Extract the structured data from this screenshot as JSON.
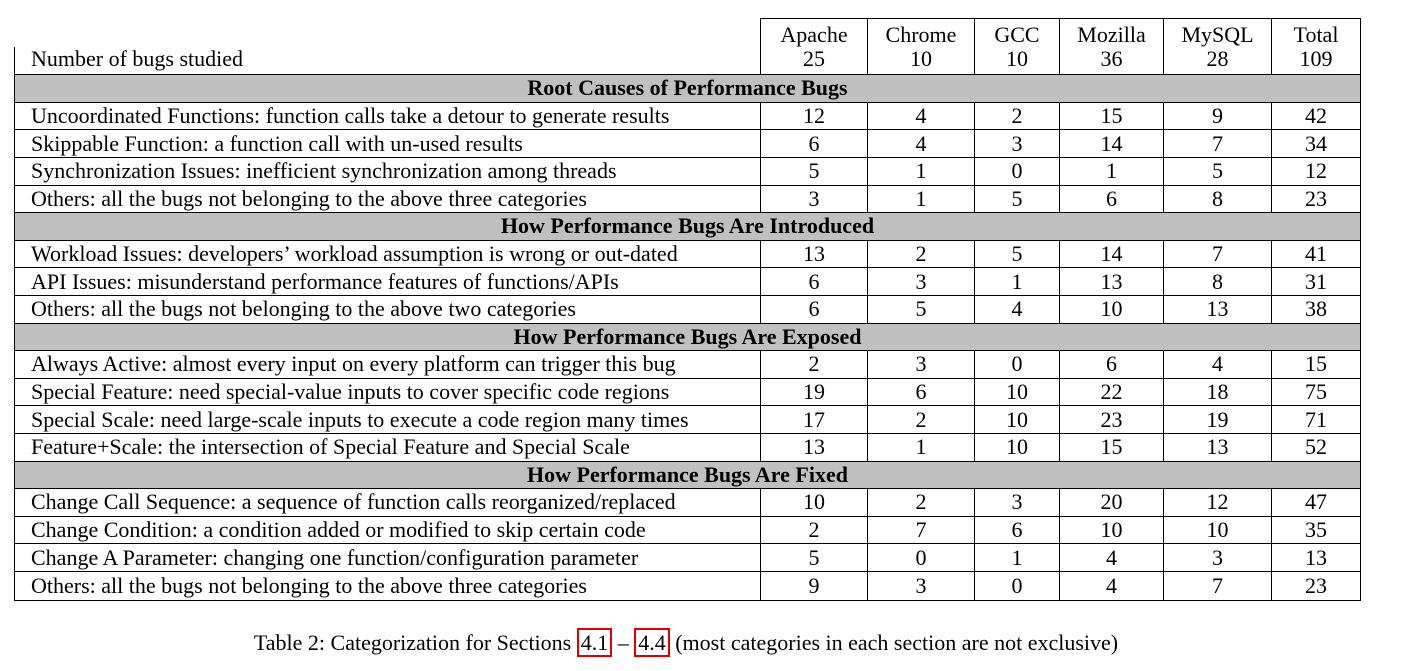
{
  "table": {
    "columns": [
      "Apache",
      "Chrome",
      "GCC",
      "Mozilla",
      "MySQL",
      "Total"
    ],
    "count_row": {
      "label": "Number of bugs studied",
      "values": [
        "25",
        "10",
        "10",
        "36",
        "28",
        "109"
      ]
    },
    "sections": [
      {
        "title": "Root Causes of Performance Bugs",
        "rows": [
          {
            "label": "Uncoordinated Functions: function calls take a detour to generate results",
            "values": [
              "12",
              "4",
              "2",
              "15",
              "9",
              "42"
            ]
          },
          {
            "label": "Skippable Function: a function call with un-used results",
            "values": [
              "6",
              "4",
              "3",
              "14",
              "7",
              "34"
            ]
          },
          {
            "label": "Synchronization Issues: inefficient synchronization among threads",
            "values": [
              "5",
              "1",
              "0",
              "1",
              "5",
              "12"
            ]
          },
          {
            "label": "Others: all the bugs not belonging to the above three categories",
            "values": [
              "3",
              "1",
              "5",
              "6",
              "8",
              "23"
            ]
          }
        ]
      },
      {
        "title": "How Performance Bugs Are Introduced",
        "rows": [
          {
            "label": "Workload Issues: developers’ workload assumption is wrong or out-dated",
            "values": [
              "13",
              "2",
              "5",
              "14",
              "7",
              "41"
            ]
          },
          {
            "label": "API Issues: misunderstand performance features of functions/APIs",
            "values": [
              "6",
              "3",
              "1",
              "13",
              "8",
              "31"
            ]
          },
          {
            "label": "Others: all the bugs not belonging to the above two categories",
            "values": [
              "6",
              "5",
              "4",
              "10",
              "13",
              "38"
            ]
          }
        ]
      },
      {
        "title": "How Performance Bugs Are Exposed",
        "rows": [
          {
            "label": "Always Active: almost every input on every platform can trigger this bug",
            "values": [
              "2",
              "3",
              "0",
              "6",
              "4",
              "15"
            ]
          },
          {
            "label": "Special Feature: need special-value inputs to cover specific code regions",
            "values": [
              "19",
              "6",
              "10",
              "22",
              "18",
              "75"
            ]
          },
          {
            "label": "Special Scale: need large-scale inputs to execute a code region many times",
            "values": [
              "17",
              "2",
              "10",
              "23",
              "19",
              "71"
            ]
          },
          {
            "label": "Feature+Scale: the intersection of Special Feature and Special Scale",
            "values": [
              "13",
              "1",
              "10",
              "15",
              "13",
              "52"
            ]
          }
        ]
      },
      {
        "title": "How Performance Bugs Are Fixed",
        "rows": [
          {
            "label": "Change Call Sequence: a sequence of function calls reorganized/replaced",
            "values": [
              "10",
              "2",
              "3",
              "20",
              "12",
              "47"
            ]
          },
          {
            "label": "Change Condition: a condition added or modified to skip certain code",
            "values": [
              "2",
              "7",
              "6",
              "10",
              "10",
              "35"
            ]
          },
          {
            "label": "Change A Parameter: changing one function/configuration parameter",
            "values": [
              "5",
              "0",
              "1",
              "4",
              "3",
              "13"
            ]
          },
          {
            "label": "Others: all the bugs not belonging to the above three categories",
            "values": [
              "9",
              "3",
              "0",
              "4",
              "7",
              "23"
            ]
          }
        ]
      }
    ]
  },
  "caption": {
    "prefix": "Table 2: Categorization for Sections ",
    "ref_start": "4.1",
    "dash": " – ",
    "ref_end": "4.4",
    "suffix": " (most categories in each section are not exclusive)"
  }
}
